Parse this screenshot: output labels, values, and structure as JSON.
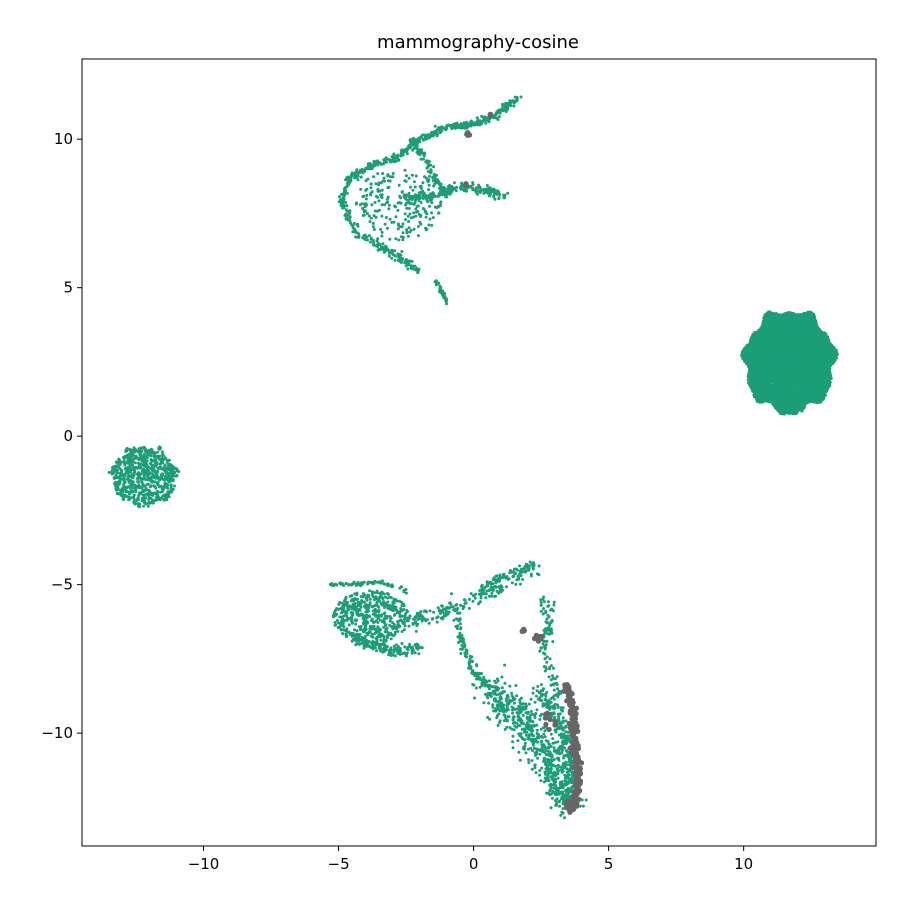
{
  "chart_data": {
    "type": "scatter",
    "title": "mammography-cosine",
    "xlabel": "",
    "ylabel": "",
    "xlim": [
      -14.5,
      14.9
    ],
    "ylim": [
      -13.8,
      12.7
    ],
    "xticks": [
      -10,
      -5,
      0,
      5,
      10
    ],
    "yticks": [
      -10,
      -5,
      0,
      5,
      10
    ],
    "xtick_labels": [
      "−10",
      "−5",
      "0",
      "5",
      "10"
    ],
    "ytick_labels": [
      "−10",
      "−5",
      "0",
      "5",
      "10"
    ],
    "grid": false,
    "legend": "none",
    "colors": {
      "class_0": "#1b9e77",
      "class_1": "#666666"
    },
    "clusters": [
      {
        "name": "blob-right",
        "class": 0,
        "shape": "disc",
        "center": [
          11.7,
          2.5
        ],
        "radius": [
          1.65,
          1.7
        ],
        "count": 9000
      },
      {
        "name": "blob-left",
        "class": 0,
        "shape": "disc",
        "center": [
          -12.2,
          -1.35
        ],
        "radius": [
          1.2,
          1.0
        ],
        "count": 700
      },
      {
        "name": "upper-arc",
        "class": 0,
        "shape": "polyline",
        "spread": 0.1,
        "count": 450,
        "path": [
          [
            -4.9,
            7.9
          ],
          [
            -4.6,
            8.7
          ],
          [
            -3.8,
            9.1
          ],
          [
            -2.8,
            9.4
          ],
          [
            -2.0,
            10.0
          ],
          [
            -1.0,
            10.4
          ],
          [
            0.0,
            10.5
          ],
          [
            0.8,
            10.8
          ],
          [
            1.7,
            11.45
          ]
        ]
      },
      {
        "name": "upper-left-edge",
        "class": 0,
        "shape": "polyline",
        "spread": 0.12,
        "count": 160,
        "path": [
          [
            -4.9,
            7.9
          ],
          [
            -4.3,
            6.8
          ],
          [
            -3.5,
            6.4
          ],
          [
            -2.5,
            5.9
          ],
          [
            -2.0,
            5.5
          ]
        ]
      },
      {
        "name": "upper-interior",
        "class": 0,
        "shape": "ellipse",
        "center": [
          -2.8,
          7.8
        ],
        "radius": [
          1.6,
          1.2
        ],
        "count": 220
      },
      {
        "name": "upper-right-arm",
        "class": 0,
        "shape": "polyline",
        "spread": 0.12,
        "count": 200,
        "path": [
          [
            -2.5,
            8.0
          ],
          [
            -1.5,
            8.1
          ],
          [
            -0.5,
            8.4
          ],
          [
            0.3,
            8.3
          ],
          [
            1.2,
            8.1
          ]
        ]
      },
      {
        "name": "upper-inner-arm",
        "class": 0,
        "shape": "polyline",
        "spread": 0.1,
        "count": 110,
        "path": [
          [
            -2.3,
            10.0
          ],
          [
            -1.8,
            9.3
          ],
          [
            -1.4,
            8.6
          ],
          [
            -1.0,
            8.1
          ]
        ]
      },
      {
        "name": "upper-tail",
        "class": 0,
        "shape": "polyline",
        "spread": 0.05,
        "count": 40,
        "path": [
          [
            -1.4,
            5.2
          ],
          [
            -1.2,
            4.9
          ],
          [
            -1.0,
            4.5
          ]
        ]
      },
      {
        "name": "lower-left-lobe",
        "class": 0,
        "shape": "ellipse",
        "center": [
          -3.8,
          -6.1
        ],
        "radius": [
          1.4,
          0.9
        ],
        "count": 500
      },
      {
        "name": "lower-left-top",
        "class": 0,
        "shape": "polyline",
        "spread": 0.06,
        "count": 80,
        "path": [
          [
            -5.3,
            -5.0
          ],
          [
            -4.5,
            -5.0
          ],
          [
            -3.5,
            -4.9
          ],
          [
            -2.5,
            -5.2
          ]
        ]
      },
      {
        "name": "lower-left-bottom",
        "class": 0,
        "shape": "polyline",
        "spread": 0.15,
        "count": 160,
        "path": [
          [
            -4.5,
            -6.8
          ],
          [
            -3.5,
            -7.1
          ],
          [
            -2.7,
            -7.3
          ],
          [
            -2.0,
            -7.1
          ]
        ]
      },
      {
        "name": "lower-bridge",
        "class": 0,
        "shape": "polyline",
        "spread": 0.25,
        "count": 200,
        "path": [
          [
            -2.5,
            -6.3
          ],
          [
            -1.5,
            -6.0
          ],
          [
            -0.5,
            -5.7
          ],
          [
            0.5,
            -5.3
          ],
          [
            1.3,
            -4.8
          ],
          [
            2.3,
            -4.5
          ]
        ]
      },
      {
        "name": "lower-bridge-top",
        "class": 0,
        "shape": "polyline",
        "spread": 0.08,
        "count": 60,
        "path": [
          [
            0.2,
            -5.2
          ],
          [
            0.8,
            -4.8
          ],
          [
            1.6,
            -4.6
          ],
          [
            2.3,
            -4.3
          ]
        ]
      },
      {
        "name": "lower-connector",
        "class": 0,
        "shape": "polyline",
        "spread": 0.12,
        "count": 100,
        "path": [
          [
            -0.6,
            -6.1
          ],
          [
            -0.4,
            -7.1
          ],
          [
            0.0,
            -7.9
          ],
          [
            0.6,
            -8.4
          ]
        ]
      },
      {
        "name": "lower-right-edge",
        "class": 0,
        "shape": "polyline",
        "spread": 0.2,
        "count": 110,
        "path": [
          [
            2.6,
            -5.4
          ],
          [
            2.8,
            -6.2
          ],
          [
            2.6,
            -7.2
          ],
          [
            2.9,
            -8.2
          ],
          [
            3.2,
            -8.8
          ]
        ]
      },
      {
        "name": "lower-funnel",
        "class": 0,
        "shape": "polyline",
        "spread": 0.5,
        "count": 600,
        "path": [
          [
            0.6,
            -8.6
          ],
          [
            1.5,
            -9.3
          ],
          [
            2.3,
            -10.2
          ],
          [
            3.0,
            -11.3
          ],
          [
            3.5,
            -12.3
          ]
        ]
      },
      {
        "name": "lower-funnel-edge",
        "class": 0,
        "shape": "polyline",
        "spread": 0.25,
        "count": 280,
        "path": [
          [
            2.4,
            -8.6
          ],
          [
            3.0,
            -9.3
          ],
          [
            3.4,
            -10.2
          ],
          [
            3.6,
            -11.2
          ],
          [
            3.5,
            -12.4
          ]
        ]
      },
      {
        "name": "gray-main",
        "class": 1,
        "shape": "polyline",
        "spread": 0.1,
        "count": 240,
        "path": [
          [
            3.4,
            -8.4
          ],
          [
            3.7,
            -9.2
          ],
          [
            3.7,
            -10.0
          ],
          [
            3.8,
            -10.8
          ],
          [
            3.9,
            -11.6
          ],
          [
            3.7,
            -12.4
          ],
          [
            3.5,
            -12.6
          ]
        ]
      },
      {
        "name": "gray-bottom",
        "class": 1,
        "shape": "ellipse",
        "center": [
          3.6,
          -12.4
        ],
        "radius": [
          0.25,
          0.12
        ],
        "count": 30
      },
      {
        "name": "gray-mid",
        "class": 1,
        "shape": "ellipse",
        "center": [
          2.4,
          -6.8
        ],
        "radius": [
          0.15,
          0.12
        ],
        "count": 10
      },
      {
        "name": "gray-mid-2",
        "class": 1,
        "shape": "ellipse",
        "center": [
          1.8,
          -6.5
        ],
        "radius": [
          0.1,
          0.08
        ],
        "count": 6
      },
      {
        "name": "gray-inner",
        "class": 1,
        "shape": "ellipse",
        "center": [
          2.8,
          -9.6
        ],
        "radius": [
          0.25,
          0.3
        ],
        "count": 10
      },
      {
        "name": "gray-top-1",
        "class": 1,
        "shape": "ellipse",
        "center": [
          -0.2,
          10.15
        ],
        "radius": [
          0.06,
          0.08
        ],
        "count": 6
      },
      {
        "name": "gray-top-2",
        "class": 1,
        "shape": "ellipse",
        "center": [
          -0.3,
          8.5
        ],
        "radius": [
          0.05,
          0.05
        ],
        "count": 3
      },
      {
        "name": "gray-top-3",
        "class": 1,
        "shape": "ellipse",
        "center": [
          0.6,
          10.8
        ],
        "radius": [
          0.04,
          0.04
        ],
        "count": 2
      }
    ]
  }
}
